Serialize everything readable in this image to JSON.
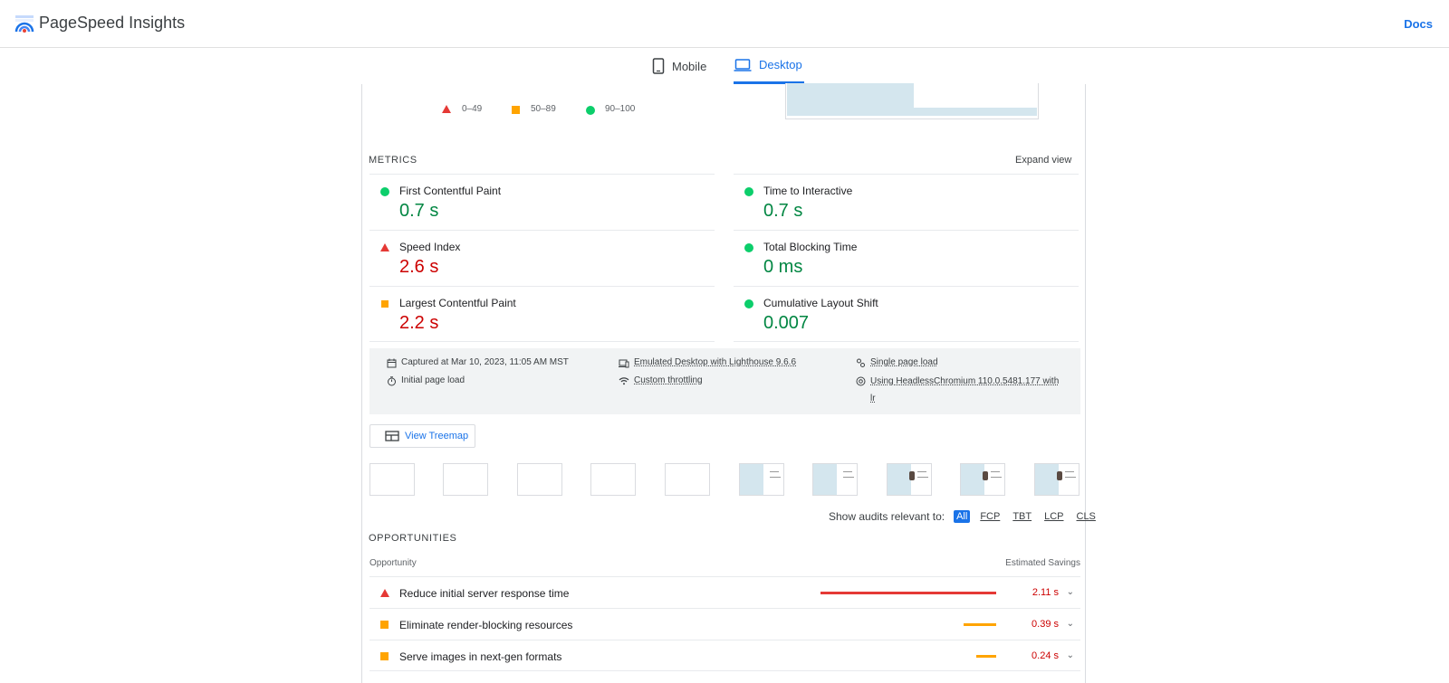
{
  "header": {
    "brand": "PageSpeed Insights",
    "docs": "Docs"
  },
  "tabs": [
    {
      "label": "Mobile",
      "icon": "phone-icon"
    },
    {
      "label": "Desktop",
      "icon": "laptop-icon",
      "active": true
    }
  ],
  "legend": {
    "fail": "0–49",
    "average": "50–89",
    "pass": "90–100"
  },
  "metrics": {
    "label": "METRICS",
    "expand": "Expand view",
    "left": [
      {
        "name": "First Contentful Paint",
        "value": "0.7 s",
        "rating": "pass"
      },
      {
        "name": "Speed Index",
        "value": "2.6 s",
        "rating": "fail"
      },
      {
        "name": "Largest Contentful Paint",
        "value": "2.2 s",
        "rating": "average"
      }
    ],
    "right": [
      {
        "name": "Time to Interactive",
        "value": "0.7 s",
        "rating": "pass"
      },
      {
        "name": "Total Blocking Time",
        "value": "0 ms",
        "rating": "pass"
      },
      {
        "name": "Cumulative Layout Shift",
        "value": "0.007",
        "rating": "pass"
      }
    ]
  },
  "runtime": {
    "captured": "Captured at Mar 10, 2023, 11:05 AM MST",
    "initial_load": "Initial page load",
    "emulated": "Emulated Desktop with Lighthouse 9.6.6",
    "throttling": "Custom throttling",
    "single_load": "Single page load",
    "browser_line1": "Using HeadlessChromium 110.0.5481.177 with",
    "browser_line2": "lr"
  },
  "treemap": "View Treemap",
  "audits_filter": {
    "label": "Show audits relevant to:",
    "options": [
      "All",
      "FCP",
      "TBT",
      "LCP",
      "CLS"
    ]
  },
  "opportunities": {
    "label": "OPPORTUNITIES",
    "col_left": "Opportunity",
    "col_right": "Estimated Savings",
    "items": [
      {
        "title": "Reduce initial server response time",
        "savings": "2.11 s",
        "rating": "fail",
        "bar_fraction": 1.0
      },
      {
        "title": "Eliminate render-blocking resources",
        "savings": "0.39 s",
        "rating": "average",
        "bar_fraction": 0.185
      },
      {
        "title": "Serve images in next-gen formats",
        "savings": "0.24 s",
        "rating": "average",
        "bar_fraction": 0.114
      }
    ]
  },
  "colors": {
    "pass": "#0cce6b",
    "average": "#ffa400",
    "fail": "#e53935",
    "accent": "#1a73e8"
  }
}
